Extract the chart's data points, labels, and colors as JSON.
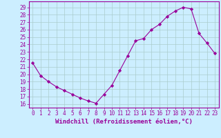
{
  "x": [
    0,
    1,
    2,
    3,
    4,
    5,
    6,
    7,
    8,
    9,
    10,
    11,
    12,
    13,
    14,
    15,
    16,
    17,
    18,
    19,
    20,
    21,
    22,
    23
  ],
  "y": [
    21.5,
    19.8,
    19.0,
    18.3,
    17.8,
    17.3,
    16.8,
    16.4,
    16.1,
    17.3,
    18.5,
    20.5,
    22.5,
    24.5,
    24.8,
    26.0,
    26.7,
    27.8,
    28.5,
    29.0,
    28.8,
    25.5,
    24.2,
    22.8
  ],
  "line_color": "#990099",
  "marker": "D",
  "marker_size": 2.2,
  "bg_color": "#cceeff",
  "grid_color": "#aacccc",
  "xlabel": "Windchill (Refroidissement éolien,°C)",
  "xlabel_color": "#990099",
  "ylabel_values": [
    16,
    17,
    18,
    19,
    20,
    21,
    22,
    23,
    24,
    25,
    26,
    27,
    28,
    29
  ],
  "ylim": [
    15.5,
    29.8
  ],
  "xlim": [
    -0.5,
    23.5
  ],
  "xtick_labels": [
    "0",
    "1",
    "2",
    "3",
    "4",
    "5",
    "6",
    "7",
    "8",
    "9",
    "10",
    "11",
    "12",
    "13",
    "14",
    "15",
    "16",
    "17",
    "18",
    "19",
    "20",
    "21",
    "22",
    "23"
  ],
  "tick_color": "#990099",
  "spine_color": "#990099",
  "tick_fontsize": 5.5,
  "xlabel_fontsize": 6.5
}
